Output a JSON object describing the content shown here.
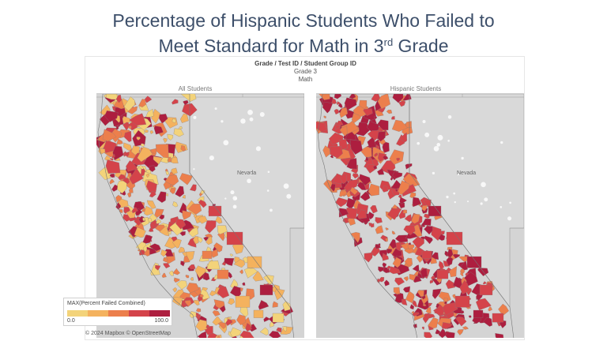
{
  "title": {
    "line1": "Percentage of Hispanic Students Who Failed to",
    "line2_pre": "Meet Standard for Math in 3",
    "line2_sup": "rd",
    "line2_post": " Grade"
  },
  "viz": {
    "header_title": "Grade / Test ID / Student Group ID",
    "header_line2": "Grade 3",
    "header_line3": "Math"
  },
  "panels": [
    {
      "label": "All Students",
      "state_label": "Nevada"
    },
    {
      "label": "Hispanic Students",
      "state_label": "Nevada"
    }
  ],
  "legend": {
    "title": "MAX(Percent Failed Combined)",
    "min": "0.0",
    "max": "100.0",
    "colors": [
      "#f3d37a",
      "#f4b25e",
      "#ec7f4c",
      "#d4434a",
      "#ad1e3f"
    ]
  },
  "attribution": "© 2024 Mapbox © OpenStreetMap",
  "colors": {
    "land_background": "#d4d4d4",
    "lake": "#ffffff",
    "title_text": "#3d4f6a"
  }
}
